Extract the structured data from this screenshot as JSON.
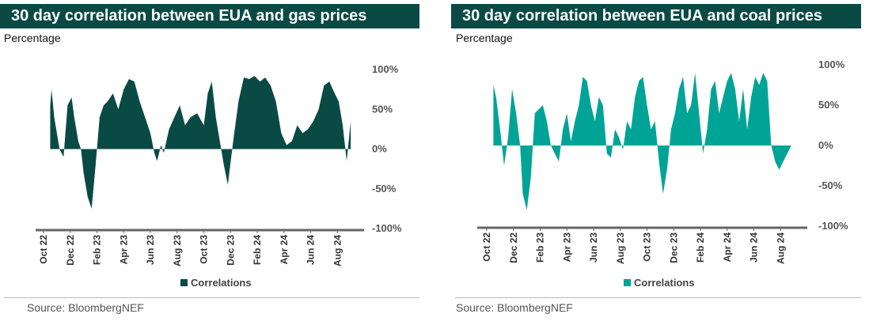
{
  "chart_data": [
    {
      "type": "area",
      "title": "30 day correlation between EUA and gas prices",
      "subtitle": "Percentage",
      "color": "#0a4a45",
      "y_ticks": [
        "100%",
        "50%",
        "0%",
        "-50%",
        "-100%"
      ],
      "ylim": [
        -100,
        100
      ],
      "x_ticks": [
        "Oct 22",
        "Dec 22",
        "Feb 23",
        "Apr 23",
        "Jun 23",
        "Aug 23",
        "Oct 23",
        "Dec 23",
        "Feb 24",
        "Apr 24",
        "Jun 24",
        "Aug 24"
      ],
      "xlim": [
        0,
        24
      ],
      "legend": "Correlations",
      "source": "Source: BloombergNEF",
      "series": [
        {
          "name": "Correlations",
          "x": [
            0.5,
            0.6,
            0.8,
            1.0,
            1.2,
            1.5,
            1.8,
            2.1,
            2.3,
            2.6,
            2.8,
            3.0,
            3.3,
            3.6,
            3.9,
            4.2,
            4.5,
            4.8,
            5.2,
            5.6,
            6.0,
            6.4,
            6.8,
            7.2,
            7.6,
            8.0,
            8.3,
            8.5,
            8.8,
            9.0,
            9.4,
            9.8,
            10.2,
            10.6,
            11.0,
            11.5,
            12.0,
            12.3,
            12.6,
            12.9,
            13.2,
            13.5,
            13.8,
            14.2,
            14.6,
            15.0,
            15.4,
            15.8,
            16.2,
            16.6,
            17.0,
            17.4,
            17.8,
            18.2,
            18.6,
            19.0,
            19.4,
            19.8,
            20.2,
            20.6,
            21.0,
            21.4,
            21.8,
            22.1,
            22.4,
            22.7,
            23.0
          ],
          "values": [
            55,
            75,
            40,
            20,
            0,
            -10,
            55,
            65,
            40,
            10,
            0,
            -30,
            -60,
            -75,
            -20,
            40,
            55,
            60,
            70,
            50,
            75,
            88,
            85,
            60,
            40,
            20,
            -5,
            -15,
            5,
            -5,
            25,
            40,
            55,
            30,
            40,
            45,
            30,
            70,
            85,
            40,
            10,
            -20,
            -45,
            10,
            60,
            90,
            88,
            92,
            85,
            90,
            80,
            60,
            20,
            5,
            10,
            30,
            20,
            25,
            35,
            50,
            80,
            85,
            70,
            60,
            30,
            -15,
            35
          ]
        }
      ]
    },
    {
      "type": "area",
      "title": "30 day correlation between EUA and coal prices",
      "subtitle": "Percentage",
      "color": "#00a497",
      "y_ticks": [
        "100%",
        "50%",
        "0%",
        "-50%",
        "-100%"
      ],
      "ylim": [
        -100,
        100
      ],
      "x_ticks": [
        "Oct 22",
        "Dec 22",
        "Feb 23",
        "Apr 23",
        "Jun 23",
        "Aug 23",
        "Oct 23",
        "Dec 23",
        "Feb 24",
        "Apr 24",
        "Jun 24",
        "Aug 24"
      ],
      "xlim": [
        0,
        24
      ],
      "legend": "Correlations",
      "source": "Source: BloombergNEF",
      "series": [
        {
          "name": "Correlations",
          "x": [
            0.5,
            0.7,
            1.0,
            1.3,
            1.6,
            1.9,
            2.2,
            2.5,
            2.7,
            3.0,
            3.3,
            3.6,
            3.9,
            4.2,
            4.5,
            4.8,
            5.1,
            5.4,
            5.7,
            6.0,
            6.3,
            6.6,
            6.9,
            7.2,
            7.5,
            7.8,
            8.1,
            8.4,
            8.7,
            9.0,
            9.3,
            9.6,
            9.9,
            10.2,
            10.5,
            10.8,
            11.1,
            11.4,
            11.7,
            12.0,
            12.3,
            12.6,
            12.9,
            13.2,
            13.5,
            13.8,
            14.1,
            14.4,
            14.7,
            15.0,
            15.3,
            15.6,
            15.9,
            16.2,
            16.5,
            16.8,
            17.1,
            17.4,
            17.7,
            18.0,
            18.3,
            18.6,
            18.9,
            19.2,
            19.5,
            19.8,
            20.1,
            20.4,
            20.7,
            21.0,
            21.3,
            21.6,
            21.9,
            22.2,
            22.5,
            22.8,
            23.1
          ],
          "values": [
            75,
            60,
            20,
            -25,
            10,
            70,
            40,
            0,
            -60,
            -80,
            -40,
            40,
            45,
            50,
            30,
            0,
            -10,
            -20,
            20,
            40,
            5,
            30,
            50,
            85,
            80,
            50,
            30,
            60,
            50,
            -10,
            -15,
            20,
            10,
            -5,
            30,
            20,
            60,
            80,
            85,
            50,
            20,
            30,
            -20,
            -60,
            -30,
            20,
            40,
            70,
            85,
            40,
            50,
            90,
            40,
            -10,
            20,
            70,
            80,
            40,
            60,
            80,
            90,
            70,
            30,
            70,
            20,
            60,
            85,
            75,
            90,
            80,
            0,
            -20,
            -30,
            -20,
            -10,
            0,
            0
          ]
        }
      ]
    }
  ]
}
